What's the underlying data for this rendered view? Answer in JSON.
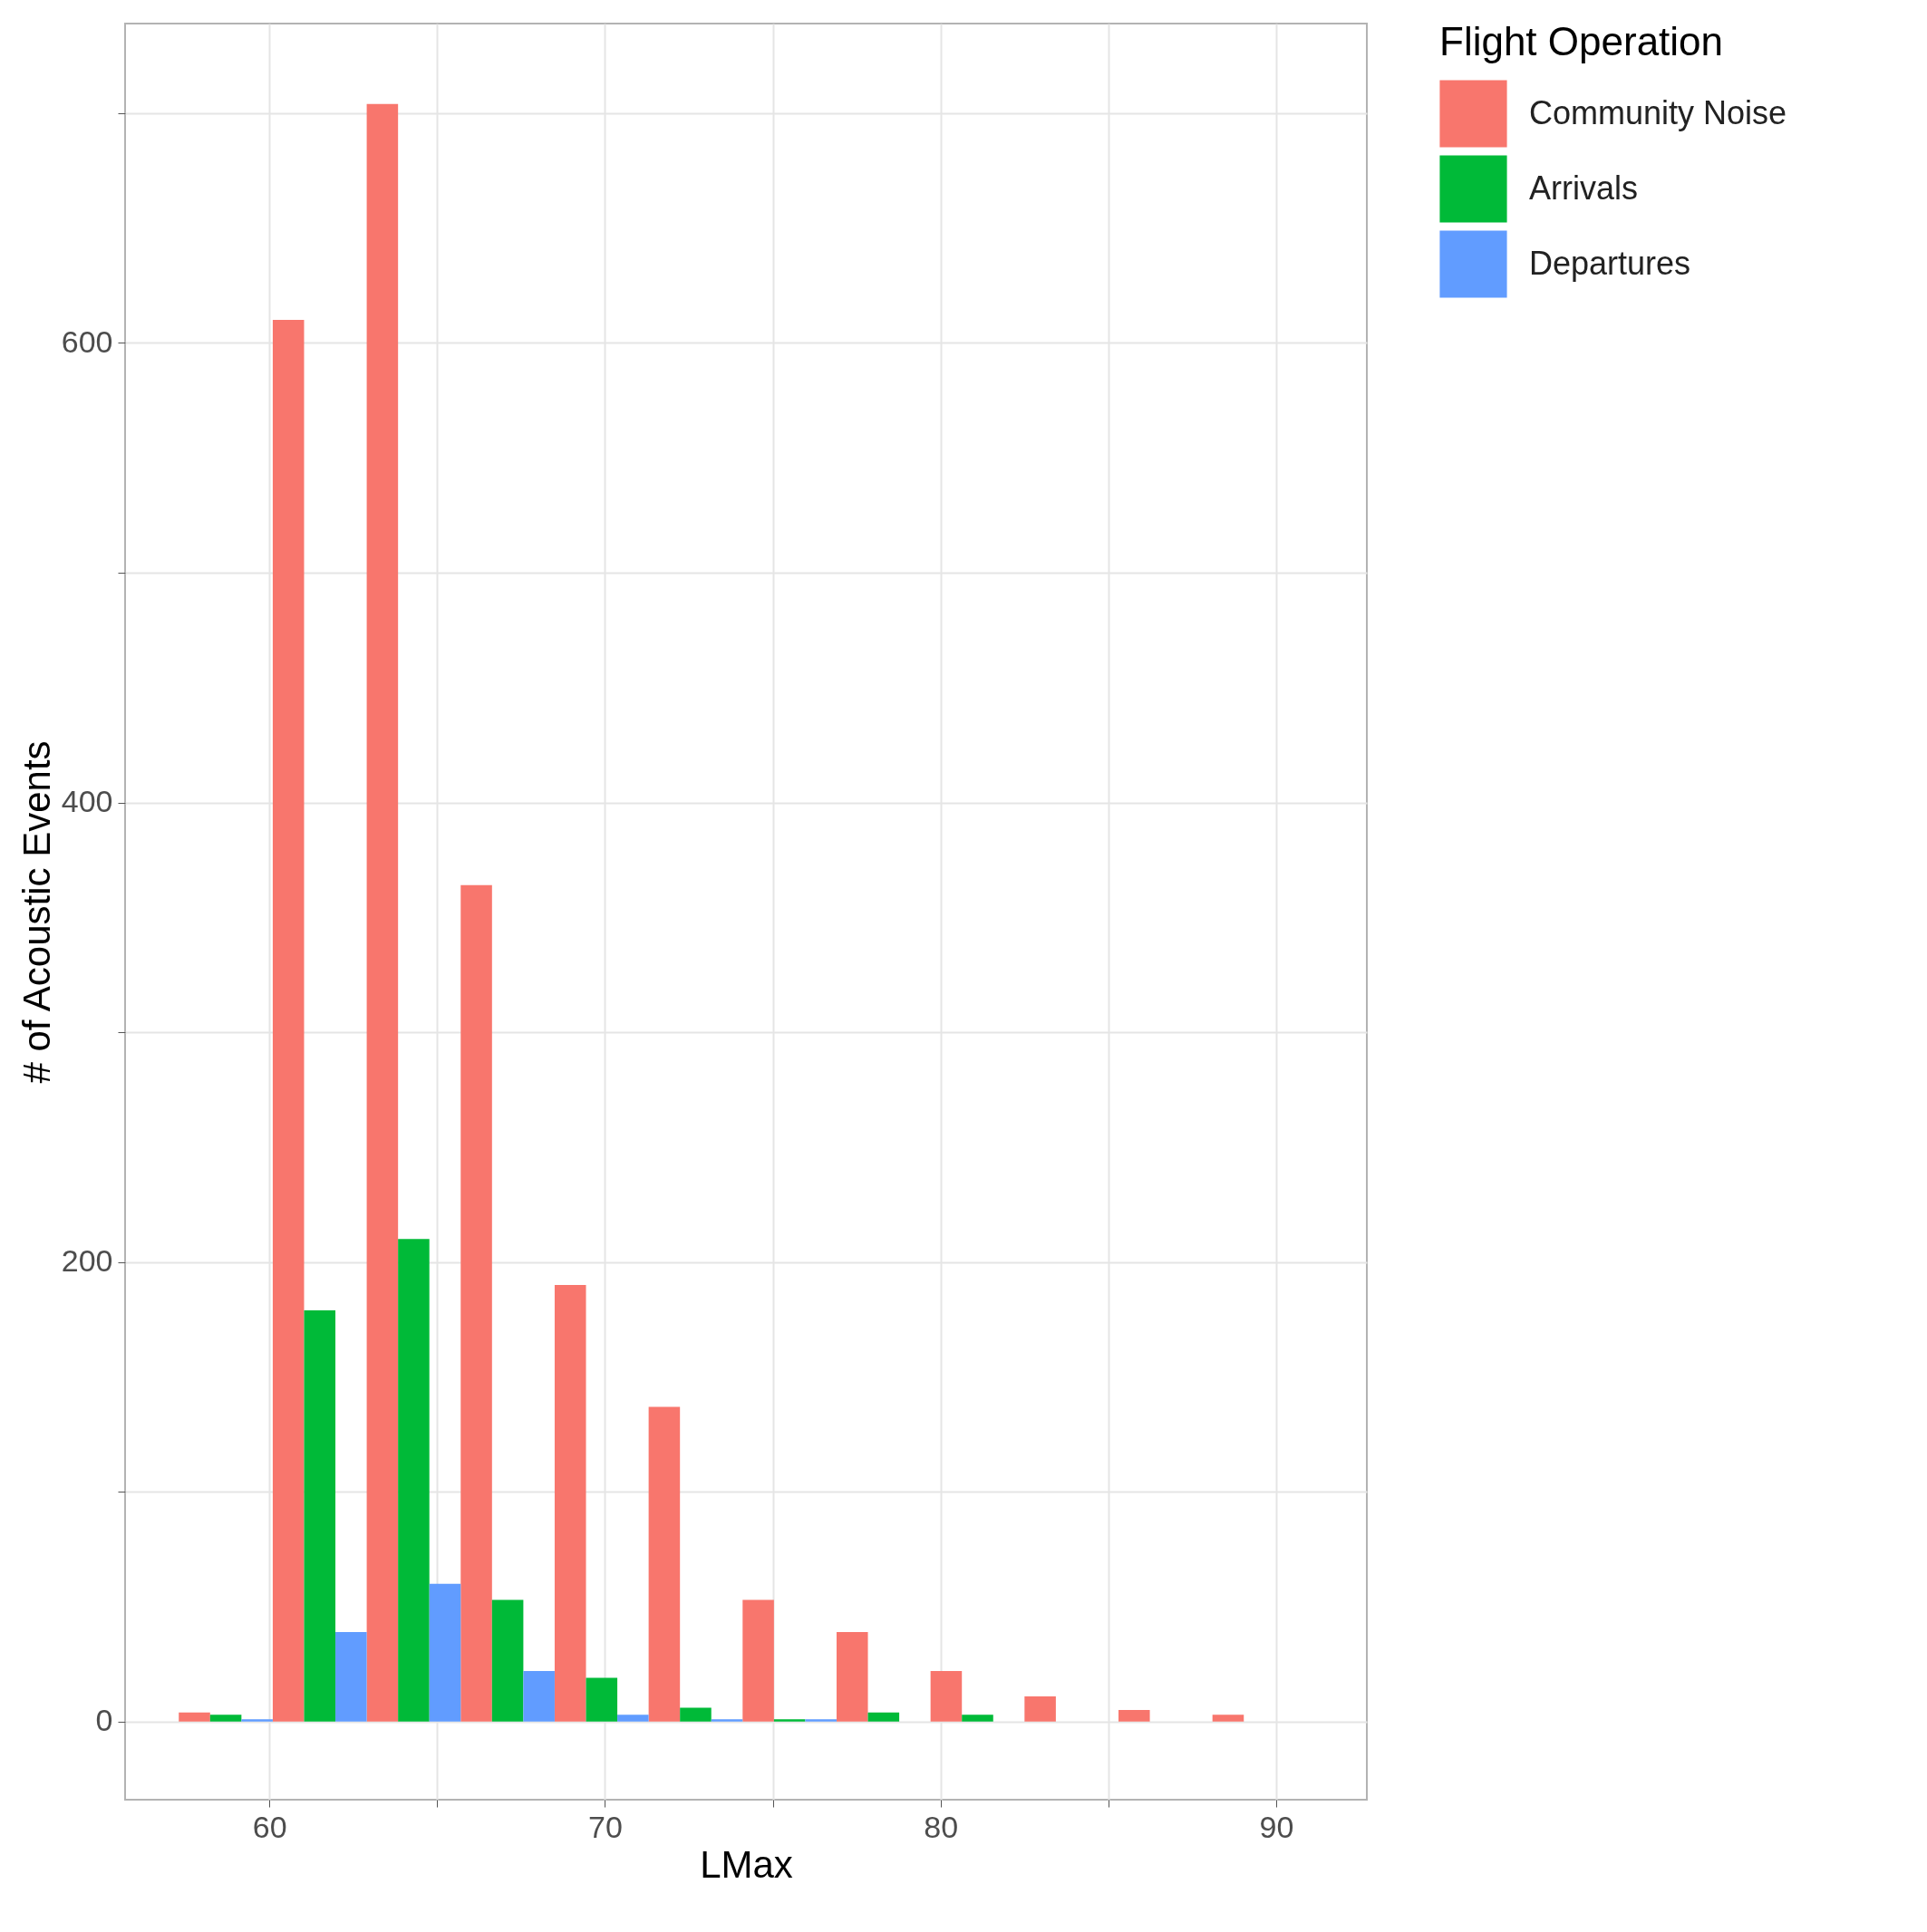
{
  "chart_data": {
    "type": "histogram",
    "xlabel": "LMax",
    "ylabel": "# of Acoustic Events",
    "legend_title": "Flight Operation",
    "legend": "right",
    "grid": true,
    "bins": [
      57.3,
      60.1,
      62.9,
      65.7,
      68.5,
      71.3,
      74.1,
      76.9,
      79.7,
      82.5,
      85.3,
      88.1,
      90.9
    ],
    "series": [
      {
        "name": "Community Noise",
        "color": "#f8766d",
        "values": [
          4,
          610,
          704,
          364,
          190,
          137,
          53,
          39,
          22,
          11,
          5,
          3
        ]
      },
      {
        "name": "Arrivals",
        "color": "#00ba38",
        "values": [
          3,
          179,
          210,
          53,
          19,
          6,
          1,
          4,
          3,
          0,
          0,
          0
        ]
      },
      {
        "name": "Departures",
        "color": "#619cff",
        "values": [
          1,
          39,
          60,
          22,
          3,
          1,
          1,
          0,
          0,
          0,
          0,
          0
        ]
      }
    ],
    "xlim": [
      55.7,
      92.7
    ],
    "ylim": [
      -34,
      739
    ],
    "xticks": [
      60,
      {
        "value": 65,
        "label": null
      },
      70,
      {
        "value": 75,
        "label": null
      },
      80,
      {
        "value": 85,
        "label": null
      },
      90
    ],
    "yticks": [
      0,
      {
        "value": 100,
        "label": null
      },
      200,
      {
        "value": 300,
        "label": null
      },
      400,
      {
        "value": 500,
        "label": null
      },
      600,
      {
        "value": 700,
        "label": null
      }
    ]
  }
}
